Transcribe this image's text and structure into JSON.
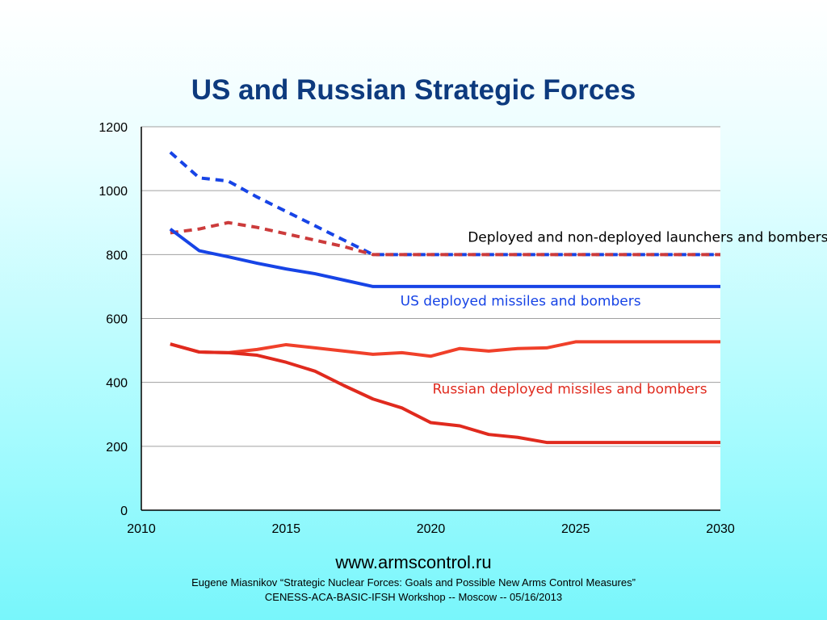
{
  "chart_data": {
    "type": "line",
    "title": "US and Russian Strategic Forces",
    "xlim": [
      2010,
      2030
    ],
    "ylim": [
      0,
      1200
    ],
    "x_ticks": [
      2010,
      2015,
      2020,
      2025,
      2030
    ],
    "y_ticks": [
      0,
      200,
      400,
      600,
      800,
      1000,
      1200
    ],
    "grid": "horizontal",
    "series": [
      {
        "id": "us-total",
        "color": "#1744e6",
        "dashed": true,
        "x": [
          2011,
          2012,
          2013,
          2014,
          2015,
          2016,
          2017,
          2018,
          2030
        ],
        "y": [
          1120,
          1040,
          1030,
          980,
          935,
          890,
          845,
          800,
          800
        ]
      },
      {
        "id": "ru-total",
        "color": "#cc3b3b",
        "dashed": true,
        "x": [
          2011,
          2012,
          2013,
          2014,
          2015,
          2016,
          2017,
          2018,
          2030
        ],
        "y": [
          868,
          880,
          900,
          885,
          865,
          845,
          825,
          800,
          800
        ]
      },
      {
        "id": "us-deployed",
        "color": "#1744e6",
        "dashed": false,
        "x": [
          2011,
          2012,
          2013,
          2014,
          2015,
          2016,
          2017,
          2018,
          2030
        ],
        "y": [
          880,
          812,
          793,
          773,
          755,
          740,
          720,
          700,
          700
        ]
      },
      {
        "id": "ru-deployed-upper",
        "color": "#f0402a",
        "dashed": false,
        "x": [
          2011,
          2012,
          2013,
          2014,
          2015,
          2016,
          2017,
          2018,
          2019,
          2020,
          2021,
          2022,
          2023,
          2024,
          2025,
          2030
        ],
        "y": [
          520,
          495,
          493,
          503,
          518,
          508,
          498,
          488,
          493,
          482,
          506,
          498,
          506,
          508,
          527,
          527
        ]
      },
      {
        "id": "ru-deployed-lower",
        "color": "#e02a1e",
        "dashed": false,
        "x": [
          2011,
          2012,
          2013,
          2014,
          2015,
          2016,
          2017,
          2018,
          2019,
          2020,
          2021,
          2022,
          2023,
          2024,
          2025,
          2030
        ],
        "y": [
          520,
          495,
          493,
          485,
          463,
          435,
          390,
          348,
          320,
          274,
          264,
          237,
          228,
          212,
          212,
          212
        ]
      }
    ],
    "annotations": [
      {
        "text": "Deployed and non-deployed launchers and bombers",
        "color": "#000000",
        "x": 2027.5,
        "y": 840
      },
      {
        "text": "US deployed missiles and bombers",
        "color": "#1744e6",
        "x": 2023.1,
        "y": 640
      },
      {
        "text": "Russian deployed missiles and bombers",
        "color": "#e02a1e",
        "x": 2024.8,
        "y": 365
      }
    ]
  },
  "footer": {
    "url": "www.armscontrol.ru",
    "citation_line1": "Eugene Miasnikov “Strategic Nuclear Forces: Goals and Possible New Arms Control Measures”",
    "citation_line2": "CENESS-ACA-BASIC-IFSH Workshop -- Moscow -- 05/16/2013"
  }
}
